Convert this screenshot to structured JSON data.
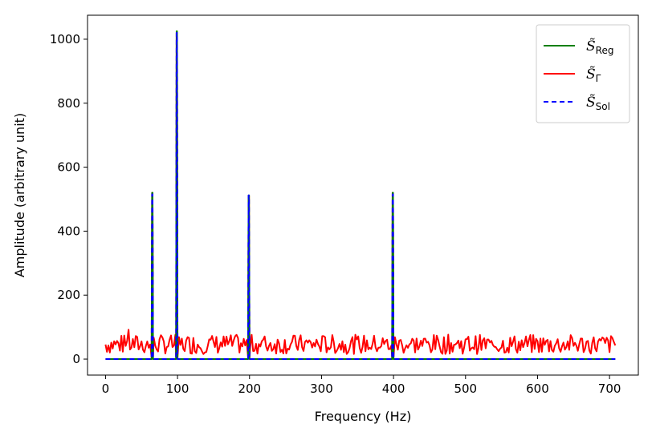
{
  "chart_data": {
    "type": "line",
    "title": "",
    "xlabel": "Frequency (Hz)",
    "ylabel": "Amplitude (arbitrary unit)",
    "xlim": [
      -25,
      740
    ],
    "ylim": [
      -50,
      1075
    ],
    "xticks": [
      0,
      100,
      200,
      300,
      400,
      500,
      600,
      700
    ],
    "yticks": [
      0,
      200,
      400,
      600,
      800,
      1000
    ],
    "grid": false,
    "legend_position": "top-right",
    "series": [
      {
        "name": "S̃Reg",
        "legend_main": "S̃",
        "legend_sub": "Reg",
        "color": "#008000",
        "dash": "solid",
        "x_range": [
          0,
          708
        ],
        "baseline": 0,
        "peaks": [
          [
            65,
            520
          ],
          [
            99,
            1025
          ],
          [
            199,
            512
          ],
          [
            399,
            520
          ]
        ]
      },
      {
        "name": "S̃Γ",
        "legend_main": "S̃",
        "legend_sub": "Γ",
        "color": "#ff0000",
        "dash": "solid",
        "x_range": [
          0,
          708
        ],
        "noise_mean": 45,
        "noise_max": 150,
        "peaks": [
          [
            65,
            520
          ],
          [
            99,
            1020
          ],
          [
            199,
            510
          ],
          [
            399,
            520
          ]
        ]
      },
      {
        "name": "S̃Sol",
        "legend_main": "S̃",
        "legend_sub": "Sol",
        "color": "#0000ff",
        "dash": "dashed",
        "x_range": [
          0,
          708
        ],
        "baseline": 0,
        "peaks": [
          [
            65,
            515
          ],
          [
            99,
            1020
          ],
          [
            199,
            512
          ],
          [
            399,
            515
          ]
        ]
      }
    ]
  }
}
